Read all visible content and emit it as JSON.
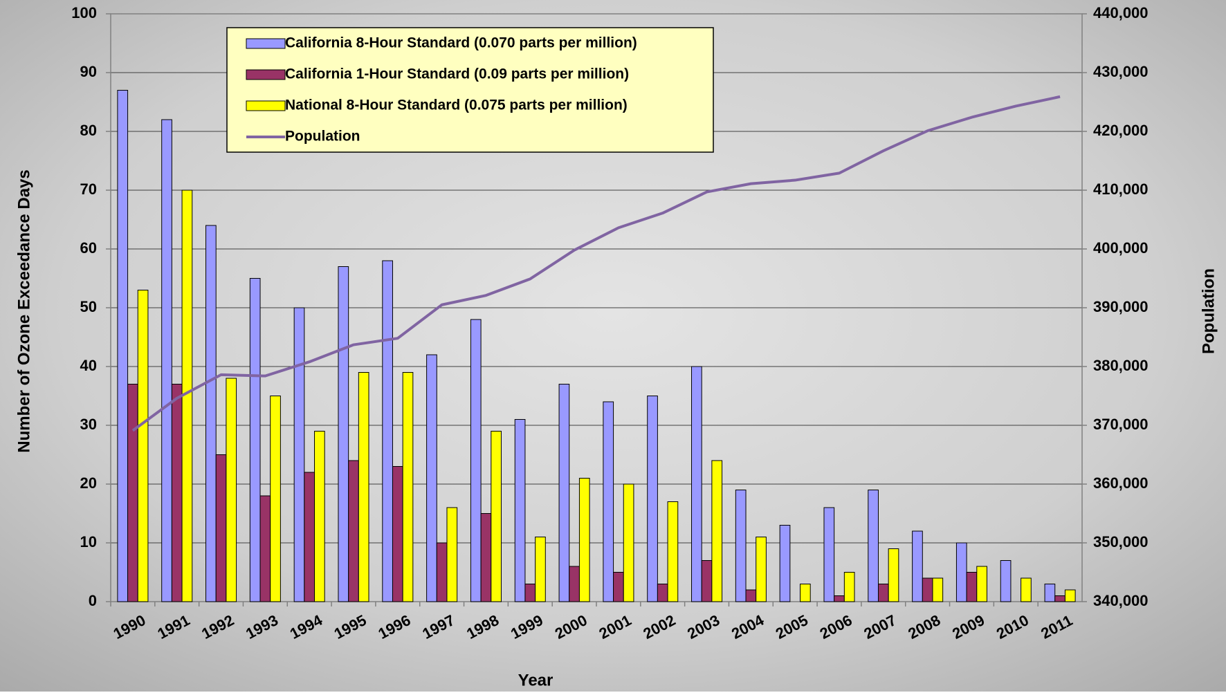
{
  "chart_data": {
    "type": "bar",
    "categories": [
      "1990",
      "1991",
      "1992",
      "1993",
      "1994",
      "1995",
      "1996",
      "1997",
      "1998",
      "1999",
      "2000",
      "2001",
      "2002",
      "2003",
      "2004",
      "2005",
      "2006",
      "2007",
      "2008",
      "2009",
      "2010",
      "2011"
    ],
    "series": [
      {
        "name": "California 8-Hour Standard (0.070 parts per million)",
        "type": "bar",
        "color": "#9999ff",
        "values": [
          87,
          82,
          64,
          55,
          50,
          57,
          58,
          42,
          48,
          31,
          37,
          34,
          35,
          40,
          19,
          13,
          16,
          19,
          12,
          10,
          7,
          3
        ]
      },
      {
        "name": "California 1-Hour Standard (0.09 parts per million)",
        "type": "bar",
        "color": "#993366",
        "values": [
          37,
          37,
          25,
          18,
          22,
          24,
          23,
          10,
          15,
          3,
          6,
          5,
          3,
          7,
          2,
          0,
          1,
          3,
          4,
          5,
          0,
          1
        ]
      },
      {
        "name": "National 8-Hour Standard (0.075 parts per million)",
        "type": "bar",
        "color": "#ffff00",
        "values": [
          53,
          70,
          38,
          35,
          29,
          39,
          39,
          16,
          29,
          11,
          21,
          20,
          17,
          24,
          11,
          3,
          5,
          9,
          4,
          6,
          4,
          2
        ]
      },
      {
        "name": "Population",
        "type": "line",
        "axis": "y2",
        "color": "#8064a2",
        "values": [
          369100,
          374600,
          378600,
          378400,
          380800,
          383700,
          384800,
          390500,
          392100,
          394900,
          399800,
          403600,
          406100,
          409700,
          411100,
          411700,
          412900,
          416700,
          420100,
          422400,
          424300,
          425900
        ]
      }
    ],
    "x_label": "Year",
    "y_label": "Number of Ozone Exceedance Days",
    "y2_label": "Population",
    "ylim": [
      0,
      100
    ],
    "yticks": [
      0,
      10,
      20,
      30,
      40,
      50,
      60,
      70,
      80,
      90,
      100
    ],
    "y2lim": [
      340000,
      440000
    ],
    "y2ticks": [
      {
        "value": 340000,
        "label": "340,000"
      },
      {
        "value": 350000,
        "label": "350,000"
      },
      {
        "value": 360000,
        "label": "360,000"
      },
      {
        "value": 370000,
        "label": "370,000"
      },
      {
        "value": 380000,
        "label": "380,000"
      },
      {
        "value": 390000,
        "label": "390,000"
      },
      {
        "value": 400000,
        "label": "400,000"
      },
      {
        "value": 410000,
        "label": "410,000"
      },
      {
        "value": 420000,
        "label": "420,000"
      },
      {
        "value": 430000,
        "label": "430,000"
      },
      {
        "value": 440000,
        "label": "440,000"
      }
    ],
    "grid": true,
    "legend": "top-left"
  }
}
